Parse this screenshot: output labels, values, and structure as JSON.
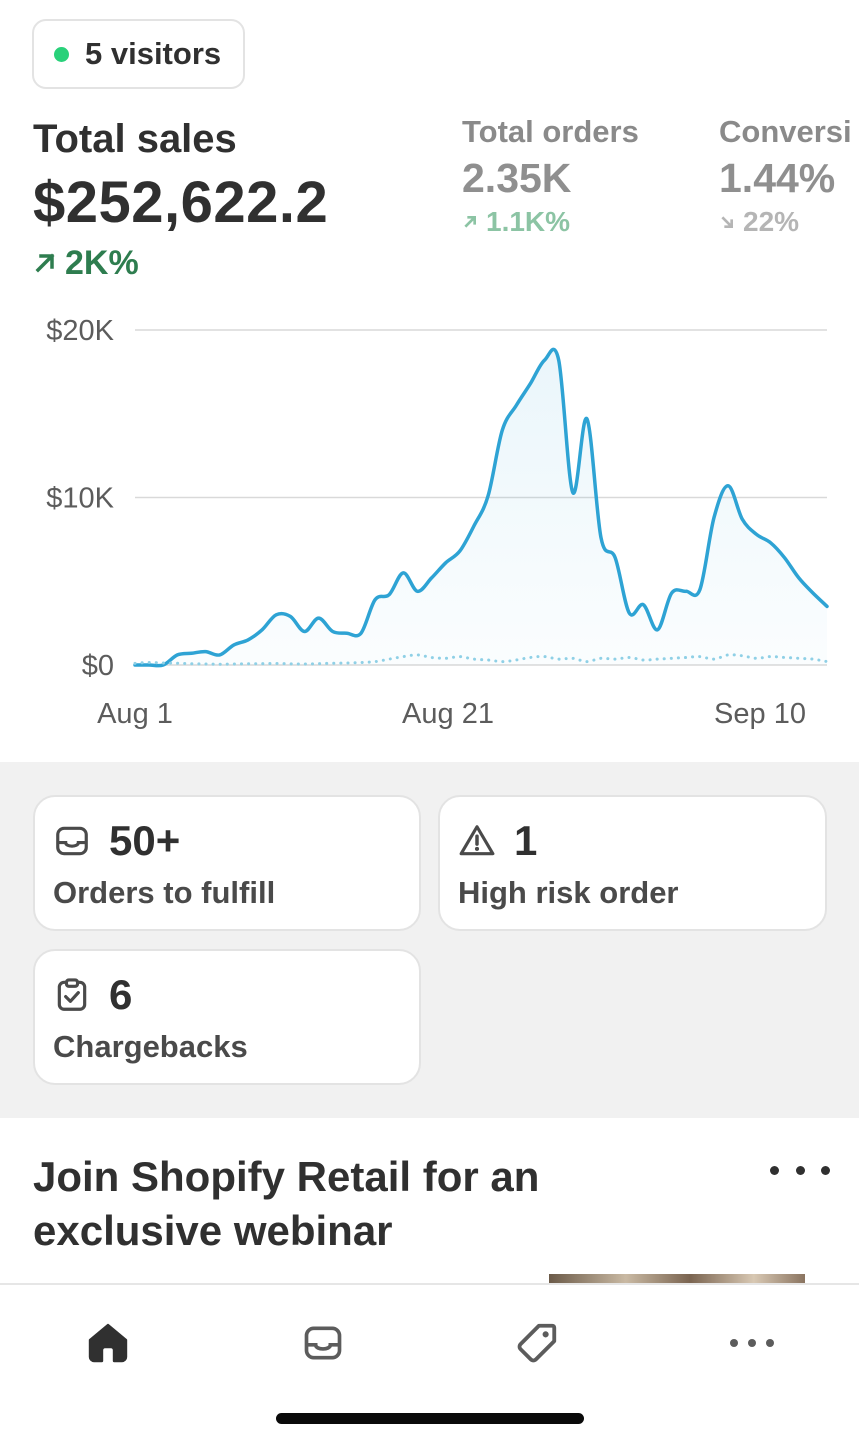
{
  "visitors": {
    "label": "5 visitors",
    "status_color": "#29d17a"
  },
  "metrics": {
    "sales": {
      "label": "Total sales",
      "value": "$252,622.2",
      "delta": "2K%",
      "trend": "up",
      "color": "#2e7d4f"
    },
    "orders": {
      "label": "Total orders",
      "value": "2.35K",
      "delta": "1.1K%",
      "trend": "up"
    },
    "conversion": {
      "label": "Conversi",
      "value": "1.44%",
      "delta": "22%",
      "trend": "down"
    }
  },
  "chart_data": {
    "type": "line",
    "y_ticks": [
      "$20K",
      "$10K",
      "$0"
    ],
    "x_ticks": [
      "Aug 1",
      "Aug 21",
      "Sep 10"
    ],
    "ylim": [
      0,
      20000
    ],
    "grid": true,
    "series": [
      {
        "style": "solid",
        "color": "#2ea3d4",
        "values": [
          0,
          0,
          0,
          600,
          700,
          800,
          600,
          1200,
          1500,
          2100,
          3000,
          2900,
          2000,
          2800,
          2000,
          1900,
          1900,
          3900,
          4200,
          5500,
          4400,
          5200,
          6100,
          6800,
          8300,
          10100,
          14000,
          15500,
          16800,
          18200,
          18200,
          10300,
          14700,
          7600,
          6400,
          3100,
          3600,
          2100,
          4300,
          4400,
          4500,
          8800,
          10700,
          8700,
          7800,
          7300,
          6400,
          5200,
          4300,
          3500
        ]
      },
      {
        "style": "dotted",
        "color": "#8fd0e6",
        "values": [
          100,
          150,
          120,
          100,
          80,
          60,
          50,
          60,
          70,
          80,
          90,
          70,
          60,
          80,
          100,
          120,
          150,
          200,
          350,
          500,
          600,
          450,
          400,
          500,
          350,
          300,
          200,
          300,
          450,
          500,
          350,
          400,
          200,
          400,
          350,
          450,
          300,
          350,
          400,
          450,
          500,
          350,
          600,
          550,
          400,
          500,
          450,
          400,
          350,
          200
        ]
      }
    ]
  },
  "cards": {
    "fulfill": {
      "count": "50+",
      "label": "Orders to fulfill",
      "icon": "inbox-icon"
    },
    "risk": {
      "count": "1",
      "label": "High risk order",
      "icon": "warning-icon"
    },
    "chargebacks": {
      "count": "6",
      "label": "Chargebacks",
      "icon": "clipboard-check-icon"
    }
  },
  "promo": {
    "title": "Join Shopify Retail for an exclusive webinar"
  },
  "tabbar": {
    "items": [
      {
        "name": "home",
        "icon": "home-icon",
        "active": true
      },
      {
        "name": "orders",
        "icon": "inbox-icon"
      },
      {
        "name": "products",
        "icon": "tag-icon"
      },
      {
        "name": "more",
        "icon": "more-icon"
      }
    ]
  }
}
